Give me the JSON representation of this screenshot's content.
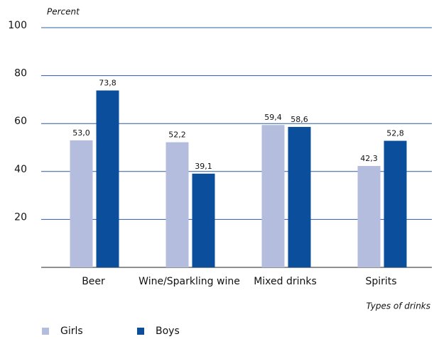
{
  "chart_data": {
    "type": "bar",
    "y_axis_label": "Percent",
    "x_axis_label": "Types of drinks",
    "categories": [
      "Beer",
      "Wine/Sparkling wine",
      "Mixed drinks",
      "Spirits"
    ],
    "series": [
      {
        "name": "Girls",
        "color": "#b4bddd",
        "values": [
          53.0,
          52.2,
          59.4,
          42.3
        ],
        "value_labels": [
          "53,0",
          "52,2",
          "59,4",
          "42,3"
        ]
      },
      {
        "name": "Boys",
        "color": "#0b4f9c",
        "values": [
          73.8,
          39.1,
          58.6,
          52.8
        ],
        "value_labels": [
          "73,8",
          "39,1",
          "58,6",
          "52,8"
        ]
      }
    ],
    "ylim": [
      0,
      100
    ],
    "yticks": [
      20,
      40,
      60,
      80,
      100
    ],
    "grid": true
  }
}
